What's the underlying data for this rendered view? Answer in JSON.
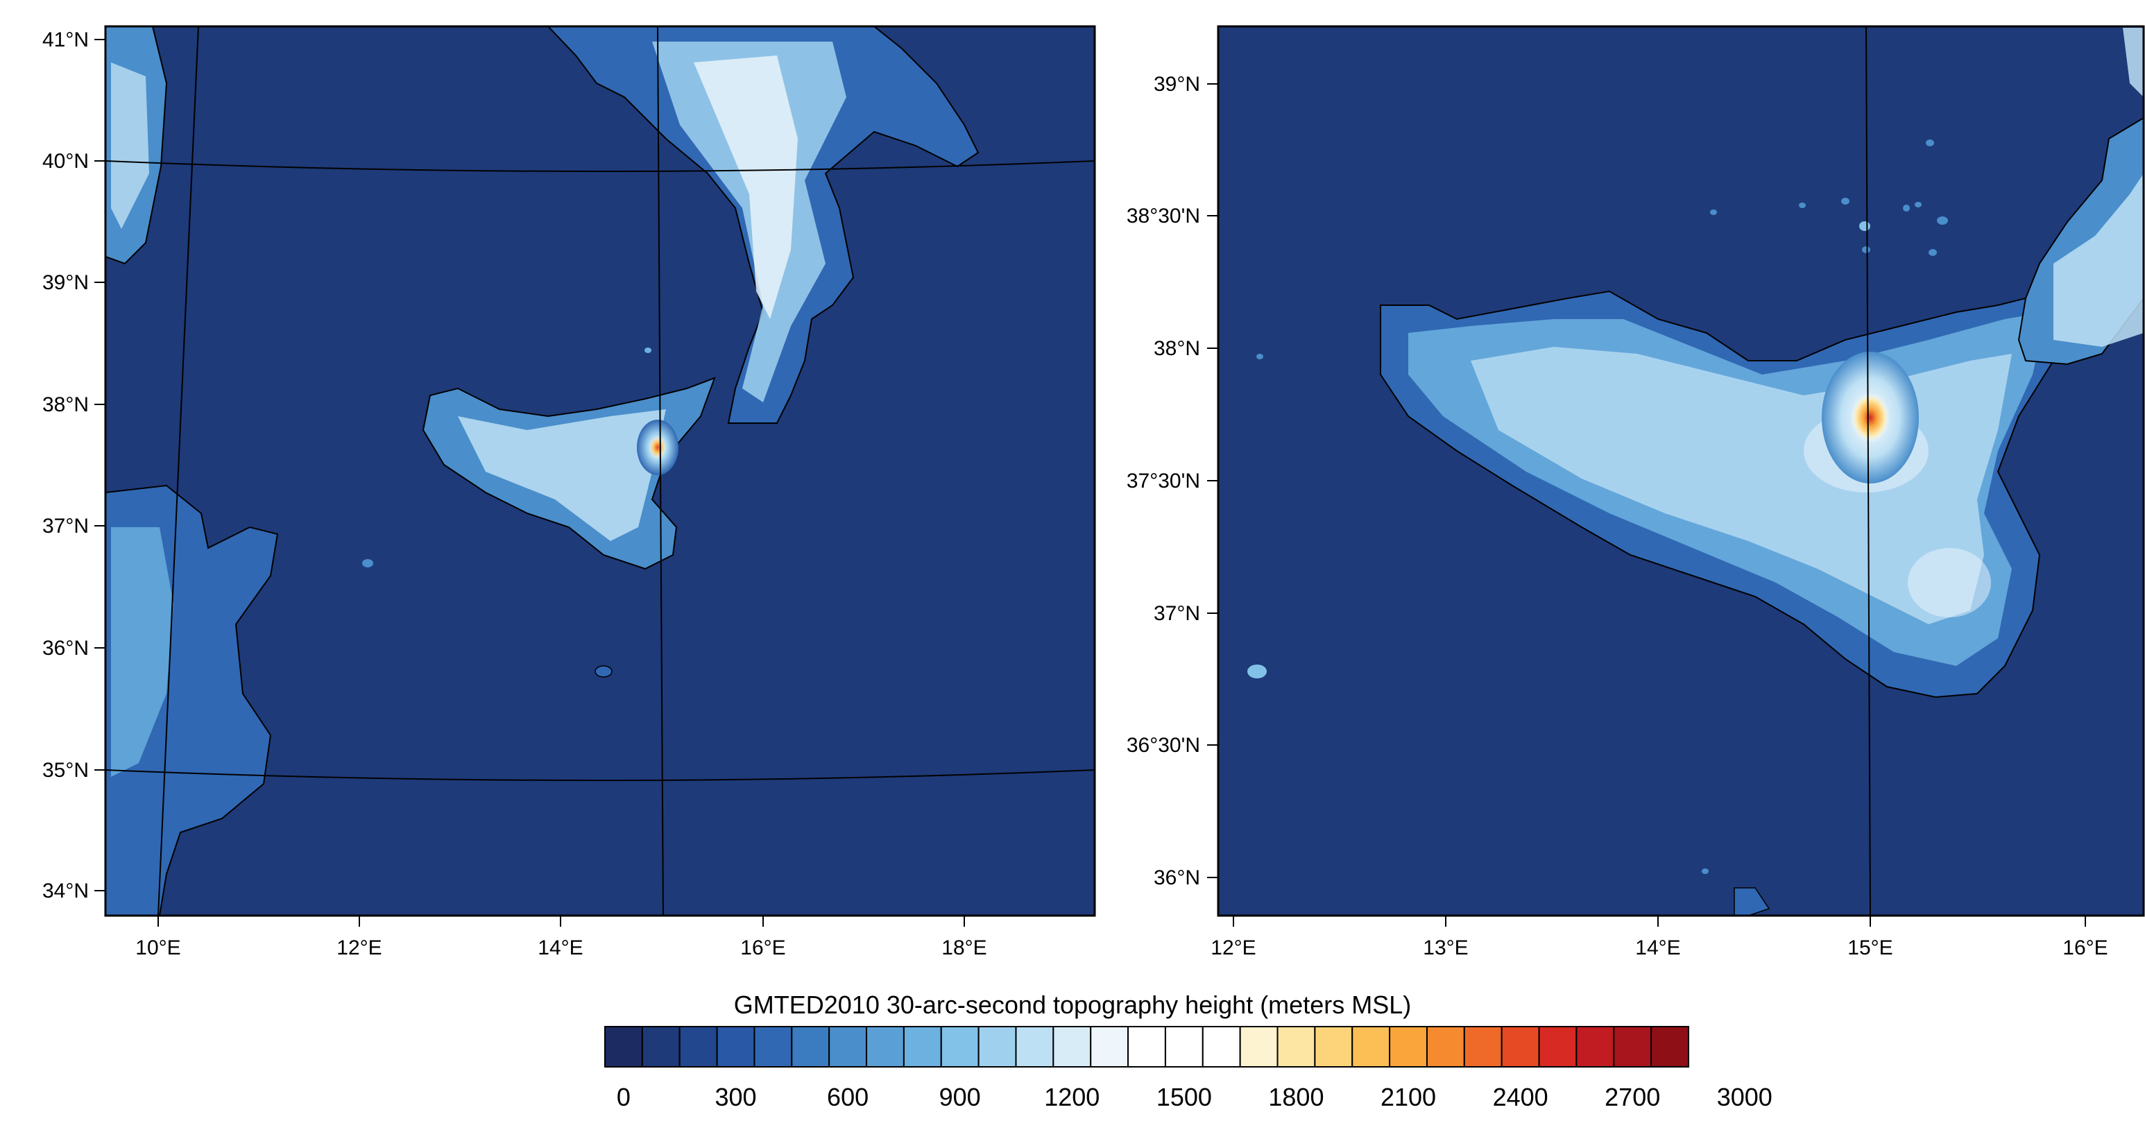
{
  "left_map": {
    "lat_labels": [
      "41°N",
      "40°N",
      "39°N",
      "38°N",
      "37°N",
      "36°N",
      "35°N",
      "34°N"
    ],
    "lon_labels": [
      "10°E",
      "12°E",
      "14°E",
      "16°E",
      "18°E"
    ],
    "ocean_color": "#1e3a78",
    "coastline_color": "#000000"
  },
  "right_map": {
    "lat_labels": [
      "39°N",
      "38°30'N",
      "38°N",
      "37°30'N",
      "37°N",
      "36°30'N",
      "36°N"
    ],
    "lon_labels": [
      "12°E",
      "13°E",
      "14°E",
      "15°E",
      "16°E"
    ],
    "ocean_color": "#1e3a78",
    "coastline_color": "#000000"
  },
  "colorbar": {
    "title": "GMTED2010 30-arc-second topography height  (meters MSL)",
    "tick_labels": [
      "0",
      "300",
      "600",
      "900",
      "1200",
      "1500",
      "1800",
      "2100",
      "2400",
      "2700",
      "3000"
    ],
    "colors": [
      "#1c2c63",
      "#1e3a78",
      "#22478f",
      "#2958a6",
      "#3068b3",
      "#3b7cc0",
      "#4a8ecb",
      "#5aa0d6",
      "#6cb1e0",
      "#82c2e8",
      "#9fd1ef",
      "#bde0f4",
      "#d8ecf8",
      "#eef6fb",
      "#ffffff",
      "#ffffff",
      "#ffffff",
      "#fdf3d0",
      "#fde6a3",
      "#fdd47a",
      "#fcbf55",
      "#f9a53b",
      "#f58a2f",
      "#ef6a28",
      "#e64a25",
      "#d62a22",
      "#c11c22",
      "#a8151d",
      "#8e1016"
    ]
  }
}
